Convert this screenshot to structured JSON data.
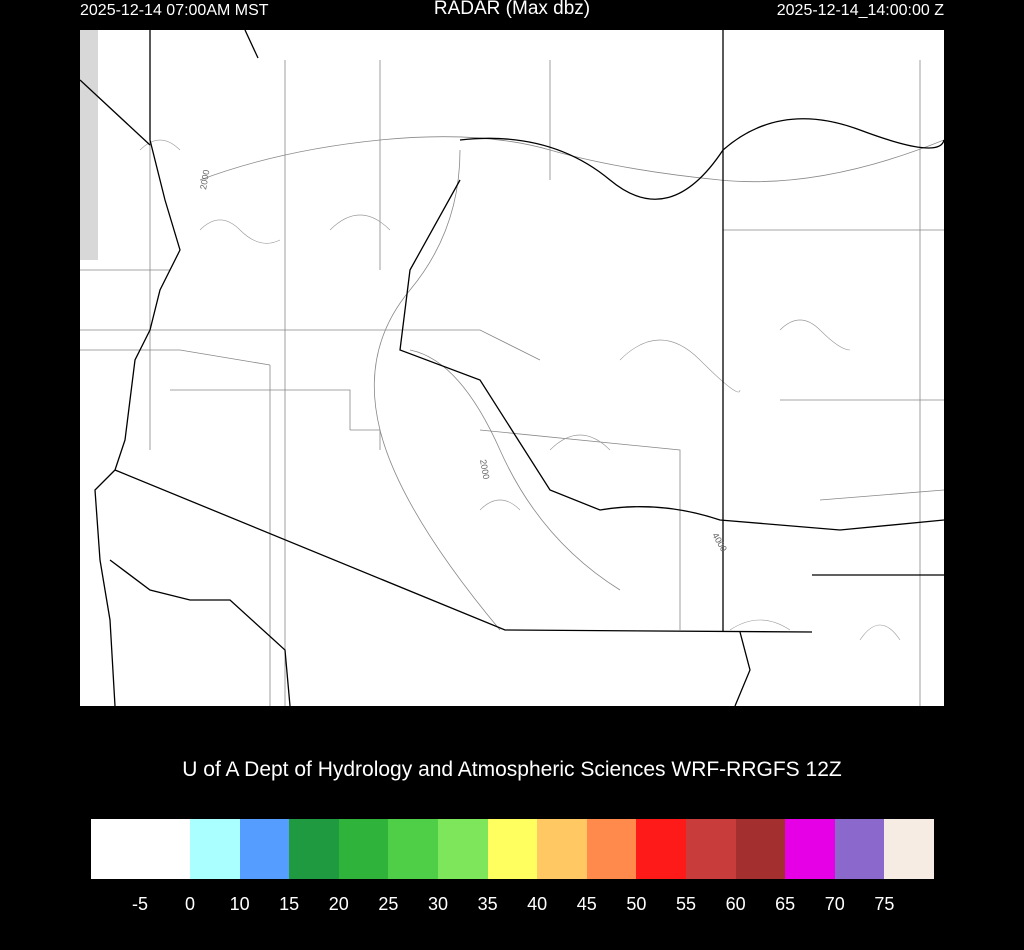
{
  "header": {
    "title": "RADAR (Max dbz)",
    "local_time": "2025-12-14 07:00AM MST",
    "utc_time": "2025-12-14_14:00:00 Z"
  },
  "map": {
    "contour_labels": [
      "2000",
      "2000",
      "4000"
    ]
  },
  "credit": "U of A Dept of Hydrology and Atmospheric Sciences WRF-RRGFS 12Z",
  "colorbar": {
    "colors": [
      "#ffffff",
      "#aaffff",
      "#559eff",
      "#1f9a41",
      "#2fb33b",
      "#4fcf48",
      "#7ee65a",
      "#ffff60",
      "#ffc863",
      "#ff8a4c",
      "#ff1a1a",
      "#c83c3c",
      "#a32f2f",
      "#e600e6",
      "#8b68cb",
      "#f7ece4"
    ],
    "labels": [
      "-5",
      "0",
      "10",
      "15",
      "20",
      "25",
      "30",
      "35",
      "40",
      "45",
      "50",
      "55",
      "60",
      "65",
      "70",
      "75"
    ]
  }
}
